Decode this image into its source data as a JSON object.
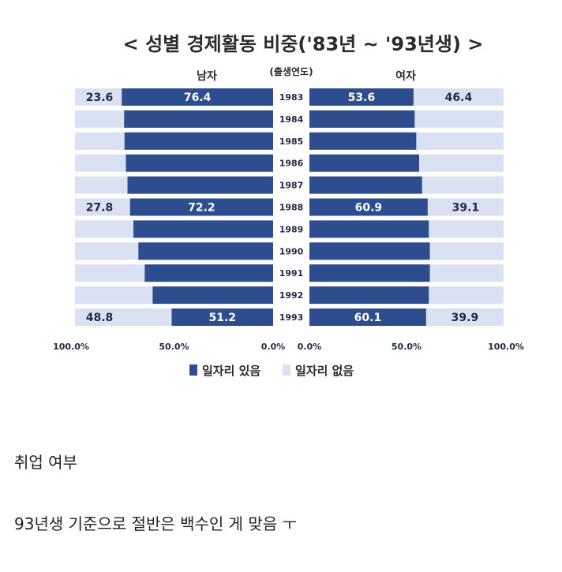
{
  "chart_data": {
    "type": "bar",
    "title": "< 성별 경제활동 비중('83년 ~ '93년생) >",
    "center_header": "(출생연도)",
    "male_header": "남자",
    "female_header": "여자",
    "years": [
      "1983",
      "1984",
      "1985",
      "1986",
      "1987",
      "1988",
      "1989",
      "1990",
      "1991",
      "1992",
      "1993"
    ],
    "series": [
      {
        "name": "일자리 있음",
        "male": [
          76.4,
          75.2,
          75.0,
          74.3,
          73.5,
          72.2,
          70.5,
          68.0,
          64.8,
          60.8,
          51.2
        ],
        "female": [
          53.6,
          54.2,
          55.0,
          56.5,
          58.0,
          60.9,
          61.5,
          62.0,
          62.0,
          61.5,
          60.1
        ]
      },
      {
        "name": "일자리 없음",
        "male": [
          23.6,
          24.8,
          25.0,
          25.7,
          26.5,
          27.8,
          29.5,
          32.0,
          35.2,
          39.2,
          48.8
        ],
        "female": [
          46.4,
          45.8,
          45.0,
          43.5,
          42.0,
          39.1,
          38.5,
          38.0,
          38.0,
          38.5,
          39.9
        ]
      }
    ],
    "labels": [
      {
        "row": 0,
        "male_employed": "76.4",
        "male_unemployed": "23.6",
        "female_employed": "53.6",
        "female_unemployed": "46.4"
      },
      {
        "row": 5,
        "male_employed": "72.2",
        "male_unemployed": "27.8",
        "female_employed": "60.9",
        "female_unemployed": "39.1"
      },
      {
        "row": 10,
        "male_employed": "51.2",
        "male_unemployed": "48.8",
        "female_employed": "60.1",
        "female_unemployed": "39.9"
      }
    ],
    "male_axis_ticks": [
      "100.0%",
      "50.0%",
      "0.0%"
    ],
    "female_axis_ticks": [
      "0.0%",
      "50.0%",
      "100.0%"
    ],
    "xlim": [
      0,
      100
    ],
    "legend_position": "bottom",
    "colors": {
      "employed": "#2e4d8e",
      "unemployed": "#d9e1f2"
    }
  },
  "caption1": "취업 여부",
  "caption2": "93년생 기준으로 절반은 백수인 게 맞음 ㅜ"
}
